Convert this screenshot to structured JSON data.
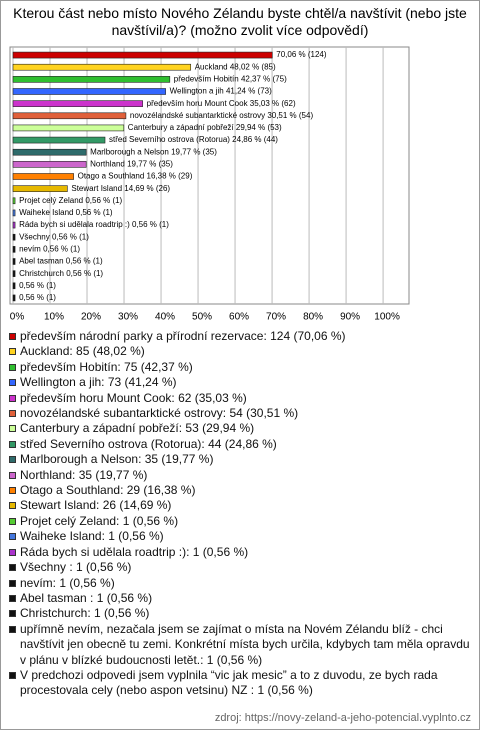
{
  "chart_data": {
    "type": "hbar",
    "title": "Kterou část nebo místo Nového Zélandu byste chtěl/a navštívit (nebo jste navštívil/a)? (možno zvolit více odpovědí)",
    "values": [
      70.06,
      48.02,
      42.37,
      41.24,
      35.03,
      30.51,
      29.94,
      24.86,
      19.77,
      19.77,
      16.38,
      14.69,
      0.56,
      0.56,
      0.56,
      0.56,
      0.56,
      0.56,
      0.56,
      0.56,
      0.56
    ],
    "value_labels": [
      "70,06 % (124)",
      "Auckland 48,02 % (85)",
      "především Hobitín 42,37 % (75)",
      "Wellington a jih 41,24 % (73)",
      "především horu Mount Cook 35,03 % (62)",
      "novozélandské subantarktické ostrovy 30,51 % (54)",
      "Canterbury a západní pobřeží 29,94 % (53)",
      "střed Severního ostrova (Rotorua) 24,86 % (44)",
      "Marlborough a Nelson 19,77 % (35)",
      "Northland 19,77 % (35)",
      "Otago a Southland 16,38 % (29)",
      "Stewart Island 14,69 % (26)",
      "Projet celý Zeland 0,56 % (1)",
      "Waiheke Island 0,56 % (1)",
      "Ráda bych si udělala roadtrip :) 0,56 % (1)",
      "Všechny  0,56 % (1)",
      "nevím 0,56 % (1)",
      "Abel tasman  0,56 % (1)",
      "Christchurch 0,56 % (1)",
      "0,56 % (1)",
      "0,56 % (1)"
    ],
    "colors": [
      "#cc0000",
      "#ffd320",
      "#2fbf2f",
      "#3366ff",
      "#cc33cc",
      "#e0603a",
      "#ccff99",
      "#339966",
      "#2e6b6b",
      "#cc66cc",
      "#ff8000",
      "#e6b800",
      "#55cc33",
      "#4477dd",
      "#aa33cc",
      "#111111",
      "#111111",
      "#111111",
      "#111111",
      "#111111",
      "#111111"
    ],
    "legend_labels": [
      "především národní parky a přírodní rezervace: 124 (70,06 %)",
      "Auckland: 85 (48,02 %)",
      "především Hobitín: 75 (42,37 %)",
      "Wellington a jih: 73 (41,24 %)",
      "především horu Mount Cook: 62 (35,03 %)",
      "novozélandské subantarktické ostrovy: 54 (30,51 %)",
      "Canterbury a západní pobřeží: 53 (29,94 %)",
      "střed Severního ostrova (Rotorua): 44 (24,86 %)",
      "Marlborough a Nelson: 35 (19,77 %)",
      "Northland: 35 (19,77 %)",
      "Otago a Southland: 29 (16,38 %)",
      "Stewart Island: 26 (14,69 %)",
      "Projet celý Zeland: 1 (0,56 %)",
      "Waiheke Island: 1 (0,56 %)",
      "Ráda bych si udělala roadtrip :): 1 (0,56 %)",
      "Všechny : 1 (0,56 %)",
      "nevím: 1 (0,56 %)",
      "Abel tasman : 1 (0,56 %)",
      "Christchurch: 1 (0,56 %)",
      "upřímně nevím, nezačala jsem se zajímat o místa na Novém Zélandu blíž - chci navštívit jen obecně tu zemi. Konkrétní místa bych určila, kdybych tam měla opravdu v plánu v blízké budoucnosti letět.: 1 (0,56 %)",
      "V predchozi odpovedi jsem vyplnila “vic jak mesic” a to z duvodu, ze bych rada procestovala cely (nebo aspon vetsinu) NZ : 1 (0,56 %)"
    ],
    "xlim": [
      0,
      107
    ],
    "xticks": [
      {
        "value": 0,
        "label": "0%"
      },
      {
        "value": 10,
        "label": "10%"
      },
      {
        "value": 20,
        "label": "20%"
      },
      {
        "value": 30,
        "label": "30%"
      },
      {
        "value": 40,
        "label": "40%"
      },
      {
        "value": 50,
        "label": "50%"
      },
      {
        "value": 60,
        "label": "60%"
      },
      {
        "value": 70,
        "label": "70%"
      },
      {
        "value": 80,
        "label": "80%"
      },
      {
        "value": 90,
        "label": "90%"
      },
      {
        "value": 100,
        "label": "100%"
      }
    ],
    "grid": true,
    "source": "zdroj: https://novy-zeland-a-jeho-potencial.vyplnto.cz"
  }
}
